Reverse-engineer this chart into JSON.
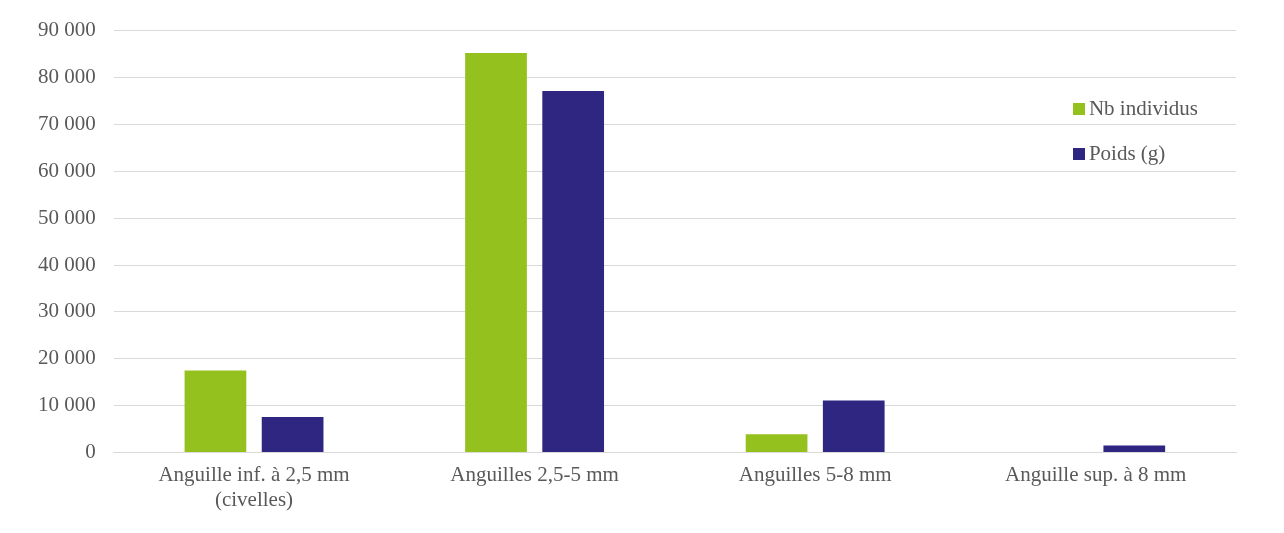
{
  "chart_data": {
    "type": "bar",
    "categories": [
      "Anguille inf. à 2,5 mm\n(civelles)",
      "Anguilles 2,5-5 mm",
      "Anguilles 5-8 mm",
      "Anguille sup. à 8 mm"
    ],
    "series": [
      {
        "name": "Nb individus",
        "color": "#95c11f",
        "values": [
          17500,
          85200,
          3900,
          0
        ]
      },
      {
        "name": "Poids (g)",
        "color": "#2e2680",
        "values": [
          7600,
          77100,
          11100,
          1500
        ]
      }
    ],
    "ylim": [
      0,
      90000
    ],
    "yticks": [
      {
        "value": 0,
        "label": "0"
      },
      {
        "value": 10000,
        "label": "10 000"
      },
      {
        "value": 20000,
        "label": "20 000"
      },
      {
        "value": 30000,
        "label": "30 000"
      },
      {
        "value": 40000,
        "label": "40 000"
      },
      {
        "value": 50000,
        "label": "50 000"
      },
      {
        "value": 60000,
        "label": "60 000"
      },
      {
        "value": 70000,
        "label": "70 000"
      },
      {
        "value": 80000,
        "label": "80 000"
      },
      {
        "value": 90000,
        "label": "90 000"
      }
    ],
    "grid": "y",
    "legend": "top right"
  }
}
